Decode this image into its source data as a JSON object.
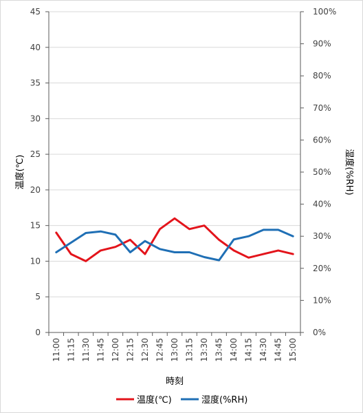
{
  "chart_data": {
    "type": "line",
    "categories": [
      "11:00",
      "11:15",
      "11:30",
      "11:45",
      "12:00",
      "12:15",
      "12:30",
      "12:45",
      "13:00",
      "13:15",
      "13:30",
      "13:45",
      "14:00",
      "14:15",
      "14:30",
      "14:45",
      "15:00"
    ],
    "series": [
      {
        "name": "温度(℃)",
        "axis": "left",
        "color": "#e3141b",
        "values": [
          14.0,
          11.0,
          10.0,
          11.5,
          12.0,
          13.0,
          11.0,
          14.5,
          16.0,
          14.5,
          15.0,
          13.0,
          11.5,
          10.5,
          11.0,
          11.5,
          11.0
        ]
      },
      {
        "name": "湿度(%RH)",
        "axis": "right",
        "color": "#1f6fb5",
        "values": [
          25,
          28,
          31,
          31.5,
          30.5,
          25,
          28.5,
          26,
          25,
          25,
          23.5,
          22.5,
          29,
          30,
          32,
          32,
          30
        ]
      }
    ],
    "xlabel": "時刻",
    "ylabel_left": "温度(℃)",
    "ylabel_right": "湿度(%RH)",
    "ylim_left": [
      0,
      45
    ],
    "ylim_right": [
      0,
      100
    ],
    "yticks_left": [
      "0",
      "5",
      "10",
      "15",
      "20",
      "25",
      "30",
      "35",
      "40",
      "45"
    ],
    "yticks_right": [
      "0%",
      "10%",
      "20%",
      "30%",
      "40%",
      "50%",
      "60%",
      "70%",
      "80%",
      "90%",
      "100%"
    ],
    "grid": true,
    "legend_position": "bottom"
  }
}
